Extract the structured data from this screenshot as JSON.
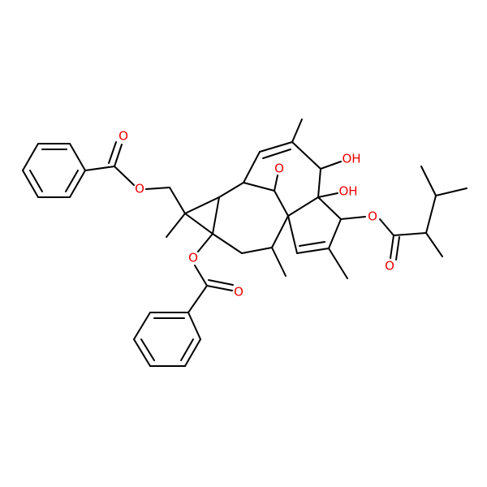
{
  "atoms": [
    {
      "label": "O"
    },
    {
      "label": "O"
    },
    {
      "label": "O"
    },
    {
      "label": "O"
    },
    {
      "label": "O"
    },
    {
      "label": "OH"
    },
    {
      "label": "OH"
    },
    {
      "label": "O"
    },
    {
      "label": "O"
    }
  ]
}
